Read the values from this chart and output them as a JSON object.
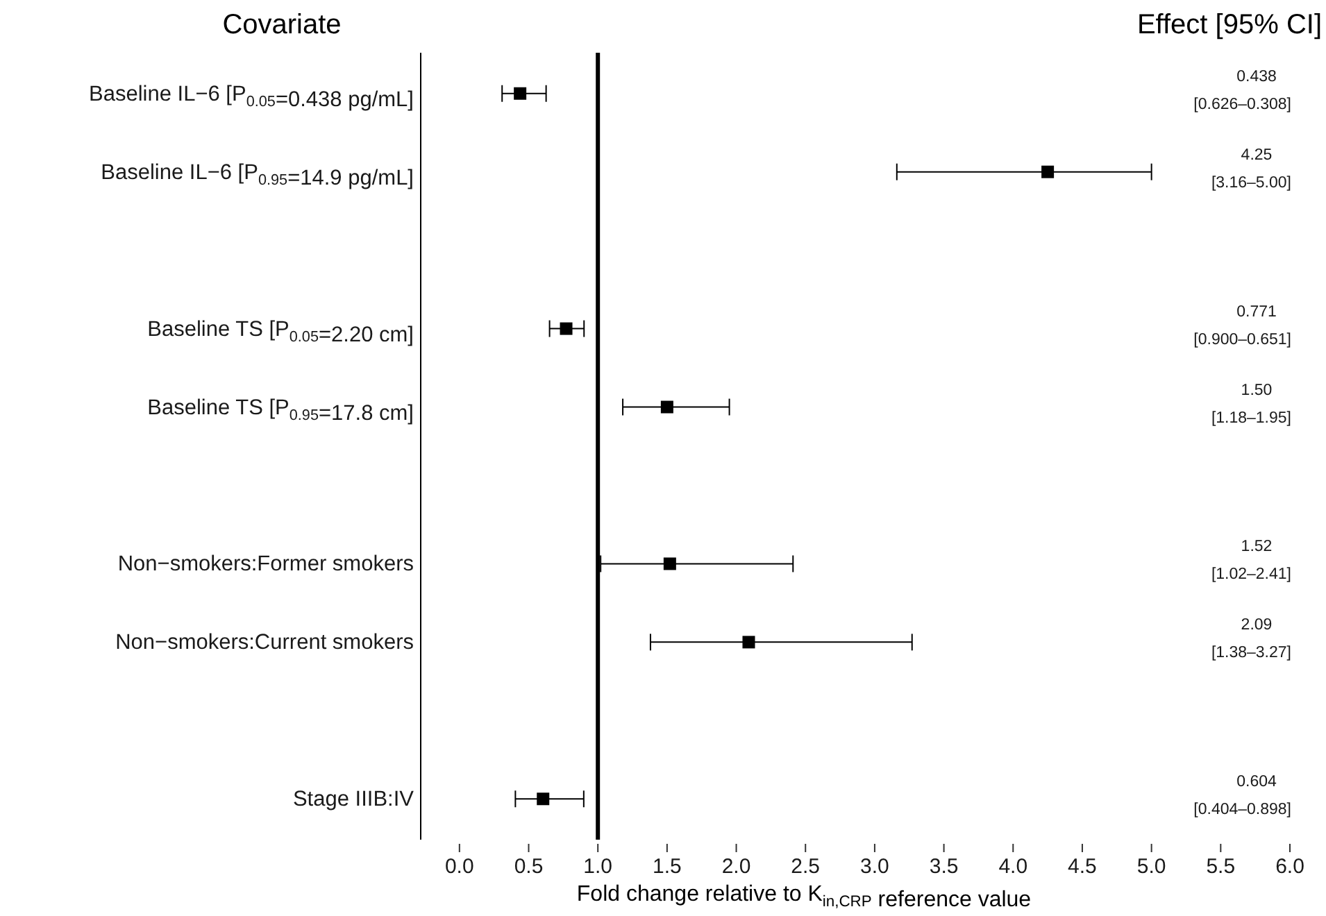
{
  "chart_data": {
    "type": "scatter",
    "orientation": "horizontal",
    "ylabel": "Covariate",
    "xlabel": "Fold change relative to K$_{in,CRP}$ reference value",
    "annotations": [
      "Effect [95% CI]",
      "0.438\n[0.626–0.308]",
      "4.25\n[3.16–5.00]",
      "0.771\n[0.900–0.651]",
      "1.50\n[1.18–1.95]",
      "1.52\n[1.02–2.41]",
      "2.09\n[1.38–3.27]",
      "0.604\n[0.404–0.898]"
    ],
    "categories": [
      "Baseline IL−6 [P$_{0.05}$=0.438 pg/mL]",
      "Baseline IL−6 [P$_{0.95}$=14.9 pg/mL]",
      null,
      "Baseline TS [P$_{0.05}$=2.20 cm]",
      "Baseline TS [P$_{0.95}$=17.8 cm]",
      null,
      "Non−smokers:Former smokers",
      "Non−smokers:Current smokers",
      null,
      "Stage IIIB:IV"
    ],
    "values": [
      0.438,
      4.25,
      null,
      0.771,
      1.5,
      null,
      1.52,
      2.09,
      null,
      0.604
    ],
    "errors": [
      [
        0.308,
        0.626
      ],
      [
        3.16,
        5.0
      ],
      null,
      [
        0.651,
        0.9
      ],
      [
        1.18,
        1.95
      ],
      null,
      [
        1.02,
        2.41
      ],
      [
        1.38,
        3.27
      ],
      null,
      [
        0.404,
        0.898
      ]
    ],
    "color": "#000000",
    "marker": "square",
    "grid": false,
    "xlim": [
      -0.28,
      6.0
    ],
    "xticks": [
      {
        "value": 0,
        "label": "0.0"
      },
      {
        "value": 0.5,
        "label": "0.5"
      },
      {
        "value": 1,
        "label": "1.0"
      },
      {
        "value": 1.5,
        "label": "1.5"
      },
      {
        "value": 2,
        "label": "2.0"
      },
      {
        "value": 2.5,
        "label": "2.5"
      },
      {
        "value": 3,
        "label": "3.0"
      },
      {
        "value": 3.5,
        "label": "3.5"
      },
      {
        "value": 4,
        "label": "4.0"
      },
      {
        "value": 4.5,
        "label": "4.5"
      },
      {
        "value": 5,
        "label": "5.0"
      },
      {
        "value": 5.5,
        "label": "5.5"
      },
      {
        "value": 6,
        "label": "6.0"
      }
    ],
    "ref_lines": [
      {
        "axis": "x",
        "value": 1,
        "color": "#000000"
      }
    ]
  }
}
